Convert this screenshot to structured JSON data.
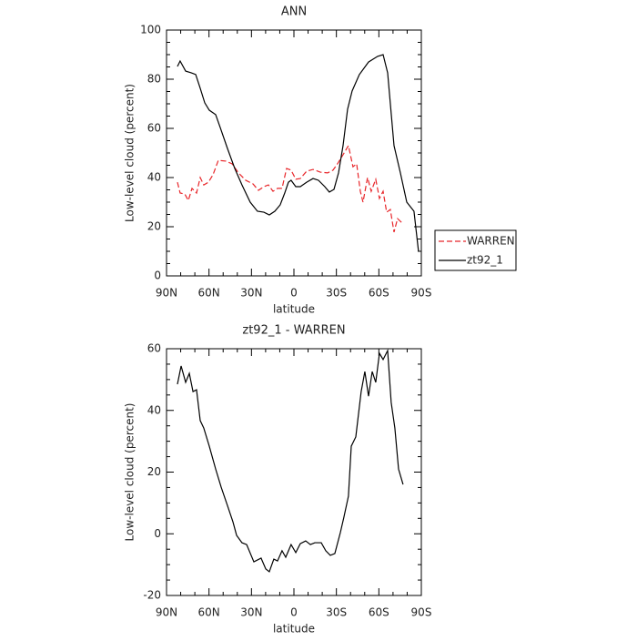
{
  "chart_data": [
    {
      "type": "line",
      "title": "ANN",
      "xlabel": "latitude",
      "ylabel": "Low-level cloud (percent)",
      "xlim": [
        90,
        -90
      ],
      "ylim": [
        0,
        100
      ],
      "xticks": [
        {
          "value": 90,
          "label": "90N"
        },
        {
          "value": 60,
          "label": "60N"
        },
        {
          "value": 30,
          "label": "30N"
        },
        0,
        {
          "value": -30,
          "label": "30S"
        },
        {
          "value": -60,
          "label": "60S"
        },
        {
          "value": -90,
          "label": "90S"
        }
      ],
      "yticks": [
        0,
        20,
        40,
        60,
        80,
        100
      ],
      "legend": "right",
      "series": [
        {
          "name": "WARREN",
          "color": "#e8262a",
          "line_style": "dashed",
          "x": [
            82.3,
            80.4,
            77.1,
            74.6,
            72.0,
            68.8,
            66.2,
            63.7,
            60.4,
            57.2,
            53.4,
            48.2,
            43.7,
            39.2,
            34.1,
            28.9,
            25.1,
            21.2,
            18.0,
            14.8,
            11.6,
            8.4,
            5.2,
            2.0,
            -1.3,
            -4.5,
            -9.0,
            -13.5,
            -18.6,
            -23.8,
            -27.6,
            -30.8,
            -34.7,
            -38.5,
            -41.7,
            -44.3,
            -46.9,
            -48.8,
            -52.0,
            -54.6,
            -57.8,
            -60.4,
            -63.0,
            -65.5,
            -68.1,
            -70.7,
            -73.2,
            -76.5
          ],
          "values": [
            38.1,
            33.7,
            33.3,
            30.7,
            35.6,
            33.7,
            40.0,
            37.0,
            38.1,
            41.1,
            47.0,
            46.7,
            45.6,
            41.9,
            38.9,
            37.4,
            34.8,
            36.3,
            37.0,
            34.4,
            35.6,
            35.6,
            43.7,
            43.0,
            39.3,
            39.6,
            42.6,
            43.3,
            42.2,
            41.9,
            43.0,
            45.6,
            49.3,
            53.0,
            44.4,
            45.6,
            34.4,
            30.0,
            40.0,
            34.4,
            39.3,
            31.5,
            34.4,
            25.9,
            27.0,
            17.8,
            23.3,
            21.5
          ]
        },
        {
          "name": "zt92_1",
          "color": "#000000",
          "line_style": "solid",
          "x": [
            82.3,
            80.4,
            76.5,
            72.6,
            69.4,
            66.2,
            63.0,
            59.8,
            55.3,
            52.1,
            47.0,
            41.8,
            36.7,
            30.9,
            25.8,
            21.2,
            17.4,
            13.5,
            9.7,
            6.5,
            3.9,
            2.0,
            -1.3,
            -4.5,
            -9.0,
            -13.5,
            -17.3,
            -21.8,
            -25.0,
            -28.3,
            -31.5,
            -34.7,
            -37.9,
            -41.1,
            -46.2,
            -52.7,
            -59.1,
            -63.0,
            -66.2,
            -70.7,
            -75.2,
            -79.7,
            -84.8,
            -88.0
          ],
          "values": [
            85.2,
            87.4,
            83.3,
            82.6,
            81.9,
            76.3,
            70.4,
            67.4,
            65.6,
            60.4,
            51.9,
            43.7,
            37.0,
            30.0,
            26.3,
            25.9,
            24.8,
            26.3,
            28.9,
            33.7,
            38.1,
            38.9,
            36.3,
            36.3,
            38.1,
            39.6,
            38.9,
            36.3,
            34.1,
            35.2,
            41.9,
            53.0,
            67.8,
            75.2,
            81.9,
            87.0,
            89.3,
            90.0,
            82.6,
            53.0,
            41.9,
            30.0,
            26.3,
            10.0
          ]
        }
      ]
    },
    {
      "type": "line",
      "title": "zt92_1 - WARREN",
      "xlabel": "latitude",
      "ylabel": "Low-level cloud (percent)",
      "xlim": [
        90,
        -90
      ],
      "ylim": [
        -20,
        60
      ],
      "xticks": [
        {
          "value": 90,
          "label": "90N"
        },
        {
          "value": 60,
          "label": "60N"
        },
        {
          "value": 30,
          "label": "30N"
        },
        0,
        {
          "value": -30,
          "label": "30S"
        },
        {
          "value": -60,
          "label": "60S"
        },
        {
          "value": -90,
          "label": "90S"
        }
      ],
      "yticks": [
        -20,
        0,
        20,
        40,
        60
      ],
      "series": [
        {
          "color": "#000000",
          "line_style": "solid",
          "x": [
            82.3,
            79.7,
            76.5,
            73.9,
            71.3,
            68.8,
            66.2,
            63.7,
            59.8,
            55.3,
            51.4,
            47.0,
            43.1,
            40.5,
            36.7,
            33.4,
            28.3,
            23.2,
            19.9,
            17.4,
            14.2,
            11.6,
            8.4,
            5.8,
            2.0,
            -1.3,
            -4.5,
            -8.3,
            -11.6,
            -14.8,
            -19.3,
            -22.5,
            -25.7,
            -28.9,
            -32.8,
            -35.3,
            -38.5,
            -40.5,
            -43.7,
            -47.5,
            -50.1,
            -52.7,
            -55.3,
            -57.8,
            -60.4,
            -63.0,
            -66.2,
            -68.7,
            -71.3,
            -73.9,
            -77.1
          ],
          "values": [
            48.5,
            54.4,
            49.1,
            52.0,
            46.1,
            46.7,
            36.7,
            34.3,
            28.4,
            21.0,
            15.1,
            9.2,
            3.9,
            -0.5,
            -2.9,
            -3.5,
            -9.1,
            -7.9,
            -11.4,
            -12.3,
            -8.2,
            -8.8,
            -5.5,
            -7.6,
            -3.5,
            -6.1,
            -3.2,
            -2.3,
            -3.5,
            -2.9,
            -2.9,
            -5.5,
            -7.0,
            -6.4,
            0.4,
            5.4,
            12.2,
            28.4,
            31.4,
            46.1,
            52.6,
            44.6,
            52.6,
            49.1,
            58.5,
            56.5,
            59.4,
            42.6,
            34.3,
            21.0,
            16.0
          ]
        }
      ]
    }
  ]
}
